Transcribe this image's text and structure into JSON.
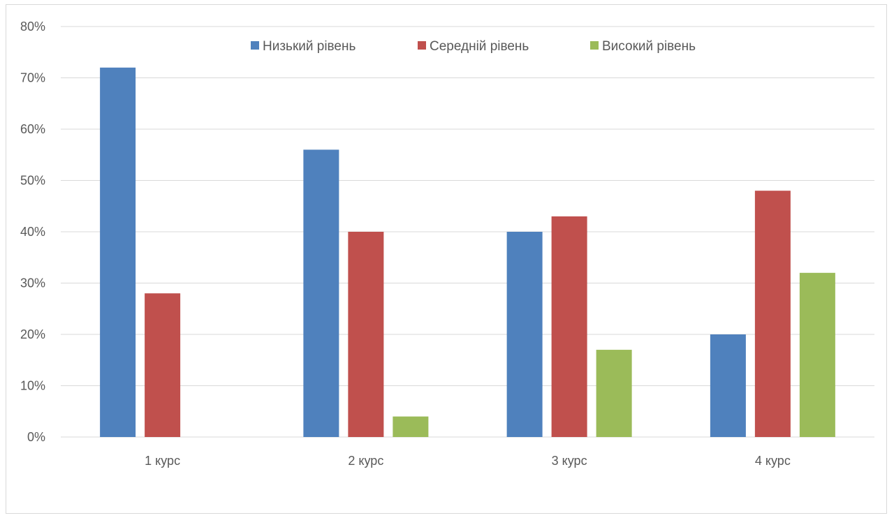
{
  "chart_data": {
    "type": "bar",
    "categories": [
      "1 курс",
      "2 курс",
      "3 курс",
      "4 курс"
    ],
    "series": [
      {
        "name": "Низький рівень",
        "values": [
          72,
          56,
          40,
          20
        ],
        "color": "#4f81bd"
      },
      {
        "name": "Середній рівень",
        "values": [
          28,
          40,
          43,
          48
        ],
        "color": "#c0504d"
      },
      {
        "name": "Високий рівень",
        "values": [
          0,
          4,
          17,
          32
        ],
        "color": "#9bbb59"
      }
    ],
    "title": "",
    "xlabel": "",
    "ylabel": "",
    "ylim": [
      0,
      80
    ],
    "yticks": [
      "0%",
      "10%",
      "20%",
      "30%",
      "40%",
      "50%",
      "60%",
      "70%",
      "80%"
    ],
    "grid": true,
    "legend_position": "top"
  }
}
